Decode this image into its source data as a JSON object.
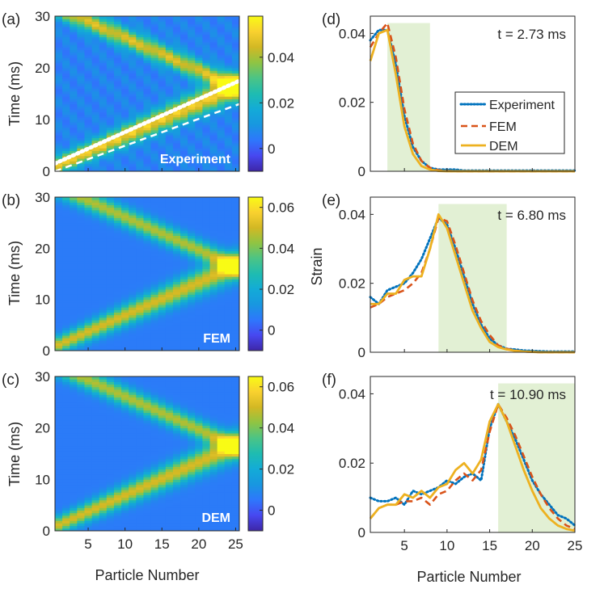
{
  "chart_data": [
    {
      "type": "heatmap",
      "panel_label": "(a)",
      "label": "Experiment",
      "ylabel": "Time (ms)",
      "xlabel": "",
      "xlim": [
        0.5,
        25.5
      ],
      "ylim": [
        0,
        30
      ],
      "xticks": [
        5,
        10,
        15,
        20,
        25
      ],
      "yticks": [
        0,
        10,
        20,
        30
      ],
      "colorbar": {
        "min": -0.01,
        "max": 0.058,
        "ticks": [
          0,
          0.02,
          0.04
        ],
        "tick_labels": [
          "0",
          "0.02",
          "0.04"
        ]
      },
      "wave": {
        "t0": 1.3,
        "slope": 0.63,
        "reflection_particle": 25
      },
      "overlay_lines": [
        {
          "style": "dotted",
          "color": "#ffffff",
          "points": [
            [
              0.5,
              1.5
            ],
            [
              25.5,
              17.5
            ]
          ]
        },
        {
          "style": "dashed",
          "color": "#ffffff",
          "points": [
            [
              0.5,
              0
            ],
            [
              25.5,
              13
            ]
          ]
        }
      ]
    },
    {
      "type": "heatmap",
      "panel_label": "(b)",
      "label": "FEM",
      "ylabel": "Time (ms)",
      "xlabel": "",
      "xlim": [
        0.5,
        25.5
      ],
      "ylim": [
        0,
        30
      ],
      "xticks": [
        5,
        10,
        15,
        20,
        25
      ],
      "yticks": [
        0,
        10,
        20,
        30
      ],
      "colorbar": {
        "min": -0.01,
        "max": 0.065,
        "ticks": [
          0,
          0.02,
          0.04,
          0.06
        ],
        "tick_labels": [
          "0",
          "0.02",
          "0.04",
          "0.06"
        ]
      },
      "wave": {
        "t0": 1.2,
        "slope": 0.64,
        "reflection_particle": 25
      }
    },
    {
      "type": "heatmap",
      "panel_label": "(c)",
      "label": "DEM",
      "ylabel": "Time (ms)",
      "xlabel": "Particle Number",
      "xlim": [
        0.5,
        25.5
      ],
      "ylim": [
        0,
        30
      ],
      "xticks": [
        5,
        10,
        15,
        20,
        25
      ],
      "xtick_labels": [
        "5",
        "10",
        "15",
        "20",
        "25"
      ],
      "yticks": [
        0,
        10,
        20,
        30
      ],
      "colorbar": {
        "min": -0.01,
        "max": 0.065,
        "ticks": [
          0,
          0.02,
          0.04,
          0.06
        ],
        "tick_labels": [
          "0",
          "0.02",
          "0.04",
          "0.06"
        ]
      },
      "wave": {
        "t0": 1.2,
        "slope": 0.64,
        "reflection_particle": 25
      }
    },
    {
      "type": "line",
      "panel_label": "(d)",
      "annotation": "t = 2.73 ms",
      "ylabel": "",
      "xlabel": "",
      "xlim": [
        1,
        25
      ],
      "ylim": [
        0,
        0.045
      ],
      "xticks": [
        5,
        10,
        15,
        20,
        25
      ],
      "yticks": [
        0,
        0.02,
        0.04
      ],
      "ytick_labels": [
        "0",
        "0.02",
        "0.04"
      ],
      "shaded_x": [
        3,
        8
      ],
      "legend": {
        "position": "right"
      },
      "series": [
        {
          "name": "Experiment",
          "x": [
            1,
            2,
            3,
            4,
            5,
            6,
            7,
            8,
            9,
            10,
            11,
            12,
            13,
            14,
            15,
            16,
            17,
            18,
            19,
            20,
            21,
            22,
            23,
            24,
            25
          ],
          "y": [
            0.038,
            0.041,
            0.041,
            0.031,
            0.016,
            0.007,
            0.003,
            0.001,
            0.0005,
            0.0005,
            0.0005,
            0.0002,
            0.0002,
            0.0002,
            0.0002,
            0.0002,
            0.0002,
            0.0002,
            0.0002,
            0.0002,
            0.0002,
            0.0002,
            0.0002,
            0.0002,
            0.0002
          ]
        },
        {
          "name": "FEM",
          "x": [
            1,
            2,
            3,
            4,
            5,
            6,
            7,
            8,
            9,
            10,
            11,
            12,
            13,
            14,
            15,
            16,
            17,
            18,
            19,
            20,
            21,
            22,
            23,
            24,
            25
          ],
          "y": [
            0.036,
            0.04,
            0.043,
            0.033,
            0.018,
            0.008,
            0.003,
            0.001,
            0.0003,
            0.0001,
            0,
            0,
            0,
            0,
            0,
            0,
            0,
            0,
            0,
            0,
            0,
            0,
            0,
            0,
            0
          ]
        },
        {
          "name": "DEM",
          "x": [
            1,
            2,
            3,
            4,
            5,
            6,
            7,
            8,
            9,
            10,
            11,
            12,
            13,
            14,
            15,
            16,
            17,
            18,
            19,
            20,
            21,
            22,
            23,
            24,
            25
          ],
          "y": [
            0.032,
            0.04,
            0.041,
            0.028,
            0.013,
            0.005,
            0.0015,
            0.0005,
            0.0001,
            0,
            0,
            0,
            0,
            0,
            0,
            0,
            0,
            0,
            0,
            0,
            0,
            0,
            0,
            0,
            0
          ]
        }
      ]
    },
    {
      "type": "line",
      "panel_label": "(e)",
      "annotation": "t = 6.80 ms",
      "ylabel": "Strain",
      "xlabel": "",
      "xlim": [
        1,
        25
      ],
      "ylim": [
        0,
        0.045
      ],
      "xticks": [
        5,
        10,
        15,
        20,
        25
      ],
      "yticks": [
        0,
        0.02,
        0.04
      ],
      "ytick_labels": [
        "0",
        "0.02",
        "0.04"
      ],
      "shaded_x": [
        9,
        17
      ],
      "series": [
        {
          "name": "Experiment",
          "x": [
            1,
            2,
            3,
            4,
            5,
            6,
            7,
            8,
            9,
            10,
            11,
            12,
            13,
            14,
            15,
            16,
            17,
            18,
            19,
            20,
            21,
            22,
            23,
            24,
            25
          ],
          "y": [
            0.016,
            0.014,
            0.018,
            0.019,
            0.02,
            0.023,
            0.027,
            0.033,
            0.039,
            0.037,
            0.03,
            0.022,
            0.014,
            0.008,
            0.004,
            0.002,
            0.001,
            0.0008,
            0.0005,
            0.0004,
            0.0003,
            0.0002,
            0.0002,
            0.0002,
            0.0002
          ]
        },
        {
          "name": "FEM",
          "x": [
            1,
            2,
            3,
            4,
            5,
            6,
            7,
            8,
            9,
            10,
            11,
            12,
            13,
            14,
            15,
            16,
            17,
            18,
            19,
            20,
            21,
            22,
            23,
            24,
            25
          ],
          "y": [
            0.013,
            0.014,
            0.016,
            0.017,
            0.018,
            0.02,
            0.023,
            0.03,
            0.039,
            0.038,
            0.031,
            0.023,
            0.015,
            0.009,
            0.005,
            0.002,
            0.001,
            0.0005,
            0.0002,
            0.0001,
            0,
            0,
            0,
            0,
            0
          ]
        },
        {
          "name": "DEM",
          "x": [
            1,
            2,
            3,
            4,
            5,
            6,
            7,
            8,
            9,
            10,
            11,
            12,
            13,
            14,
            15,
            16,
            17,
            18,
            19,
            20,
            21,
            22,
            23,
            24,
            25
          ],
          "y": [
            0.014,
            0.014,
            0.017,
            0.017,
            0.021,
            0.022,
            0.022,
            0.03,
            0.04,
            0.036,
            0.028,
            0.02,
            0.012,
            0.007,
            0.003,
            0.0015,
            0.0008,
            0.0004,
            0.0002,
            0.0001,
            0,
            0,
            0,
            0,
            0
          ]
        }
      ]
    },
    {
      "type": "line",
      "panel_label": "(f)",
      "annotation": "t = 10.90 ms",
      "ylabel": "",
      "xlabel": "Particle Number",
      "xlim": [
        1,
        25
      ],
      "ylim": [
        0,
        0.045
      ],
      "xticks": [
        5,
        10,
        15,
        20,
        25
      ],
      "xtick_labels": [
        "5",
        "10",
        "15",
        "20",
        "25"
      ],
      "yticks": [
        0,
        0.02,
        0.04
      ],
      "ytick_labels": [
        "0",
        "0.02",
        "0.04"
      ],
      "shaded_x": [
        16,
        25
      ],
      "series": [
        {
          "name": "Experiment",
          "x": [
            1,
            2,
            3,
            4,
            5,
            6,
            7,
            8,
            9,
            10,
            11,
            12,
            13,
            14,
            15,
            16,
            17,
            18,
            19,
            20,
            21,
            22,
            23,
            24,
            25
          ],
          "y": [
            0.01,
            0.009,
            0.009,
            0.01,
            0.008,
            0.012,
            0.011,
            0.012,
            0.013,
            0.015,
            0.014,
            0.016,
            0.017,
            0.015,
            0.03,
            0.037,
            0.032,
            0.027,
            0.021,
            0.015,
            0.011,
            0.008,
            0.005,
            0.004,
            0.002
          ]
        },
        {
          "name": "FEM",
          "x": [
            1,
            2,
            3,
            4,
            5,
            6,
            7,
            8,
            9,
            10,
            11,
            12,
            13,
            14,
            15,
            16,
            17,
            18,
            19,
            20,
            21,
            22,
            23,
            24,
            25
          ],
          "y": [
            0.004,
            0.007,
            0.008,
            0.008,
            0.009,
            0.009,
            0.01,
            0.008,
            0.011,
            0.012,
            0.015,
            0.017,
            0.015,
            0.018,
            0.029,
            0.037,
            0.033,
            0.028,
            0.022,
            0.016,
            0.011,
            0.007,
            0.004,
            0.002,
            0.001
          ]
        },
        {
          "name": "DEM",
          "x": [
            1,
            2,
            3,
            4,
            5,
            6,
            7,
            8,
            9,
            10,
            11,
            12,
            13,
            14,
            15,
            16,
            17,
            18,
            19,
            20,
            21,
            22,
            23,
            24,
            25
          ],
          "y": [
            0.004,
            0.007,
            0.008,
            0.008,
            0.011,
            0.01,
            0.012,
            0.01,
            0.013,
            0.014,
            0.018,
            0.02,
            0.017,
            0.021,
            0.032,
            0.037,
            0.032,
            0.025,
            0.018,
            0.012,
            0.007,
            0.004,
            0.002,
            0.001,
            0.0005
          ]
        }
      ]
    }
  ],
  "legend_entries": [
    {
      "name": "Experiment",
      "color": "#0072BD",
      "style": "dotted"
    },
    {
      "name": "FEM",
      "color": "#D95319",
      "style": "dashed"
    },
    {
      "name": "DEM",
      "color": "#EDB120",
      "style": "solid"
    }
  ],
  "colors": {
    "experiment": "#0072BD",
    "fem": "#D95319",
    "dem": "#EDB120",
    "shade": "#e2f0d4"
  }
}
